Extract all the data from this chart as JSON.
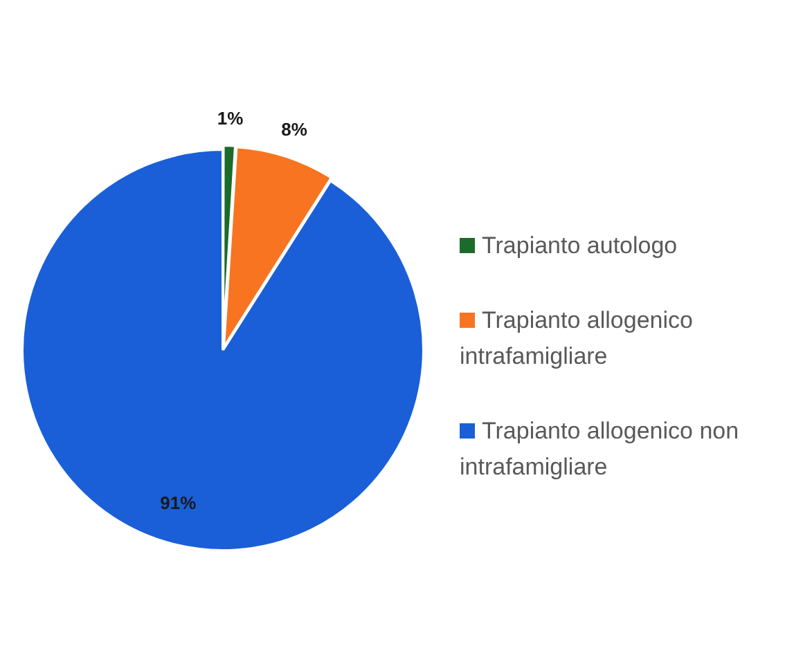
{
  "chart_data": {
    "type": "pie",
    "categories": [
      "Trapianto autologo",
      "Trapianto allogenico intrafamigliare",
      "Trapianto allogenico non intrafamigliare"
    ],
    "values": [
      1,
      8,
      91
    ],
    "colors": [
      "#1b6b2b",
      "#f97420",
      "#1a5fd8"
    ],
    "value_labels": [
      "1%",
      "8%",
      "91%"
    ],
    "legend": "right"
  }
}
